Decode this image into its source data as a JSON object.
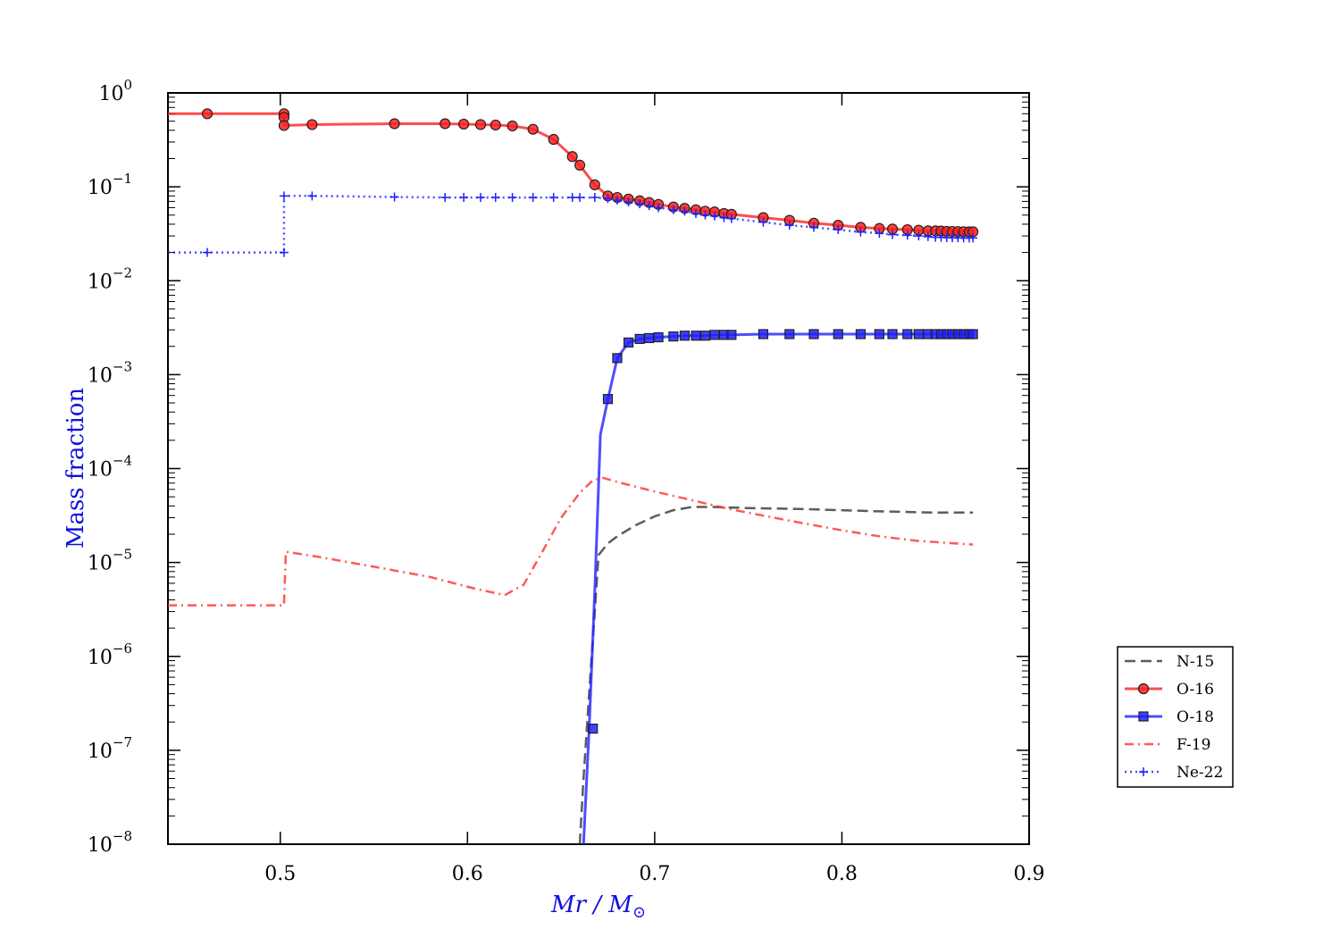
{
  "chart_data": {
    "type": "line",
    "title": "",
    "xlabel": "Mr / M",
    "xlabel_subscript": "⊙",
    "ylabel": "Mass fraction",
    "xlim": [
      0.44,
      0.9
    ],
    "ylim": [
      1e-08,
      1
    ],
    "yscale": "log",
    "x_ticks": [
      0.5,
      0.6,
      0.7,
      0.8,
      0.9
    ],
    "x_tick_labels": [
      "0.5",
      "0.6",
      "0.7",
      "0.8",
      "0.9"
    ],
    "y_ticks": [
      -8,
      -7,
      -6,
      -5,
      -4,
      -3,
      -2,
      -1,
      0
    ],
    "y_tick_labels": [
      "10",
      "10",
      "10",
      "10",
      "10",
      "10",
      "10",
      "10",
      "10"
    ],
    "y_tick_exponents": [
      "−8",
      "−7",
      "−6",
      "−5",
      "−4",
      "−3",
      "−2",
      "−1",
      "0"
    ],
    "grid": false,
    "legend_position": "right, outside plot",
    "colors": {
      "axis_title": "#1010e0",
      "o16": "#ff2020",
      "o18": "#2020ff",
      "n15": "#202020",
      "f19": "#ff3030",
      "ne22": "#2020ff"
    },
    "series": [
      {
        "name": "N-15",
        "style": "dashed",
        "color": "#333333",
        "marker": "none",
        "x": [
          0.66,
          0.662,
          0.664,
          0.666,
          0.668,
          0.67,
          0.675,
          0.68,
          0.69,
          0.7,
          0.71,
          0.72,
          0.73,
          0.75,
          0.78,
          0.82,
          0.85,
          0.87
        ],
        "y": [
          1e-08,
          5e-08,
          2e-07,
          8e-07,
          3e-06,
          1.2e-05,
          1.6e-05,
          1.9e-05,
          2.5e-05,
          3.1e-05,
          3.6e-05,
          3.9e-05,
          3.9e-05,
          3.8e-05,
          3.7e-05,
          3.5e-05,
          3.4e-05,
          3.4e-05
        ]
      },
      {
        "name": "O-16",
        "style": "solid",
        "color": "#ff2020",
        "marker": "circle",
        "x": [
          0.44,
          0.461,
          0.502,
          0.502,
          0.502,
          0.517,
          0.561,
          0.588,
          0.598,
          0.607,
          0.615,
          0.624,
          0.635,
          0.646,
          0.656,
          0.66,
          0.668,
          0.675,
          0.68,
          0.686,
          0.692,
          0.697,
          0.702,
          0.71,
          0.716,
          0.722,
          0.727,
          0.732,
          0.737,
          0.741,
          0.758,
          0.772,
          0.785,
          0.798,
          0.81,
          0.82,
          0.827,
          0.835,
          0.841,
          0.846,
          0.85,
          0.853,
          0.856,
          0.859,
          0.862,
          0.865,
          0.868,
          0.87
        ],
        "y": [
          0.6,
          0.6,
          0.6,
          0.55,
          0.45,
          0.46,
          0.47,
          0.47,
          0.465,
          0.46,
          0.455,
          0.445,
          0.41,
          0.32,
          0.21,
          0.17,
          0.105,
          0.08,
          0.077,
          0.074,
          0.071,
          0.068,
          0.065,
          0.061,
          0.059,
          0.057,
          0.055,
          0.054,
          0.052,
          0.051,
          0.047,
          0.044,
          0.041,
          0.039,
          0.037,
          0.036,
          0.0355,
          0.035,
          0.0345,
          0.034,
          0.034,
          0.0338,
          0.0336,
          0.0335,
          0.0334,
          0.0333,
          0.0332,
          0.0332
        ]
      },
      {
        "name": "O-18",
        "style": "solid",
        "color": "#2020ff",
        "marker": "square",
        "x": [
          0.662,
          0.665,
          0.668,
          0.671,
          0.675,
          0.68,
          0.686,
          0.692,
          0.697,
          0.702,
          0.71,
          0.716,
          0.722,
          0.727,
          0.732,
          0.737,
          0.741,
          0.758,
          0.772,
          0.785,
          0.798,
          0.81,
          0.82,
          0.827,
          0.835,
          0.841,
          0.846,
          0.85,
          0.853,
          0.856,
          0.859,
          0.862,
          0.865,
          0.868,
          0.87
        ],
        "y": [
          1e-08,
          1.7e-07,
          5e-06,
          0.00023,
          0.00055,
          0.0015,
          0.0022,
          0.0024,
          0.00245,
          0.0025,
          0.00255,
          0.0026,
          0.0026,
          0.0026,
          0.00265,
          0.00265,
          0.00265,
          0.0027,
          0.0027,
          0.0027,
          0.0027,
          0.0027,
          0.0027,
          0.0027,
          0.0027,
          0.0027,
          0.0027,
          0.0027,
          0.0027,
          0.0027,
          0.0027,
          0.0027,
          0.0027,
          0.0027,
          0.0027
        ],
        "marker_x": [
          0.667,
          0.675,
          0.68,
          0.686,
          0.692,
          0.697,
          0.702,
          0.71,
          0.716,
          0.722,
          0.727,
          0.732,
          0.737,
          0.741,
          0.758,
          0.772,
          0.785,
          0.798,
          0.81,
          0.82,
          0.827,
          0.835,
          0.841,
          0.846,
          0.85,
          0.853,
          0.856,
          0.859,
          0.862,
          0.865,
          0.868,
          0.87
        ],
        "marker_y": [
          1.7e-07,
          0.00055,
          0.0015,
          0.0022,
          0.0024,
          0.00245,
          0.0025,
          0.00255,
          0.0026,
          0.0026,
          0.0026,
          0.00265,
          0.00265,
          0.00265,
          0.0027,
          0.0027,
          0.0027,
          0.0027,
          0.0027,
          0.0027,
          0.0027,
          0.0027,
          0.0027,
          0.0027,
          0.0027,
          0.0027,
          0.0027,
          0.0027,
          0.0027,
          0.0027,
          0.0027,
          0.0027
        ]
      },
      {
        "name": "F-19",
        "style": "dash-dot",
        "color": "#ff3030",
        "marker": "none",
        "x": [
          0.44,
          0.5,
          0.502,
          0.503,
          0.52,
          0.55,
          0.58,
          0.605,
          0.62,
          0.63,
          0.64,
          0.65,
          0.66,
          0.667,
          0.672,
          0.68,
          0.69,
          0.7,
          0.72,
          0.74,
          0.76,
          0.78,
          0.8,
          0.82,
          0.84,
          0.86,
          0.87
        ],
        "y": [
          3.5e-06,
          3.5e-06,
          3.5e-06,
          1.3e-05,
          1.15e-05,
          9e-06,
          7e-06,
          5.2e-06,
          4.5e-06,
          5.8e-06,
          1.3e-05,
          3e-05,
          5.5e-05,
          7.5e-05,
          8e-05,
          7.2e-05,
          6.4e-05,
          5.7e-05,
          4.6e-05,
          3.7e-05,
          3.1e-05,
          2.6e-05,
          2.2e-05,
          1.9e-05,
          1.7e-05,
          1.6e-05,
          1.55e-05
        ]
      },
      {
        "name": "Ne-22",
        "style": "dotted",
        "color": "#2020ff",
        "marker": "plus",
        "x": [
          0.44,
          0.461,
          0.502,
          0.502,
          0.517,
          0.561,
          0.588,
          0.598,
          0.607,
          0.615,
          0.624,
          0.635,
          0.646,
          0.656,
          0.66,
          0.668,
          0.675,
          0.68,
          0.686,
          0.692,
          0.697,
          0.702,
          0.71,
          0.716,
          0.722,
          0.727,
          0.732,
          0.737,
          0.741,
          0.758,
          0.772,
          0.785,
          0.798,
          0.81,
          0.82,
          0.827,
          0.835,
          0.841,
          0.846,
          0.85,
          0.853,
          0.856,
          0.859,
          0.862,
          0.865,
          0.868,
          0.87
        ],
        "y": [
          0.02,
          0.02,
          0.02,
          0.08,
          0.08,
          0.078,
          0.077,
          0.077,
          0.077,
          0.077,
          0.077,
          0.077,
          0.077,
          0.077,
          0.077,
          0.077,
          0.075,
          0.072,
          0.069,
          0.066,
          0.063,
          0.06,
          0.057,
          0.055,
          0.052,
          0.05,
          0.049,
          0.047,
          0.046,
          0.042,
          0.039,
          0.037,
          0.035,
          0.033,
          0.032,
          0.031,
          0.0305,
          0.03,
          0.0295,
          0.029,
          0.029,
          0.0288,
          0.0287,
          0.0286,
          0.0285,
          0.0285,
          0.0285
        ]
      }
    ]
  }
}
